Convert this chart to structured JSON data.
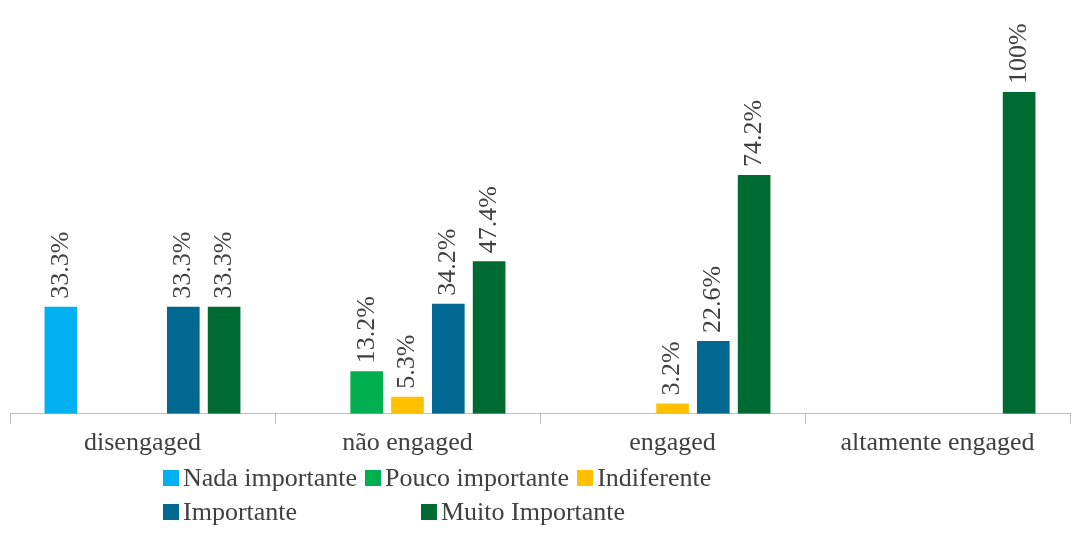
{
  "chart_data": {
    "type": "bar",
    "categories": [
      "disengaged",
      "não engaged",
      "engaged",
      "altamente engaged"
    ],
    "legend": "bottom",
    "series": [
      {
        "name": "Nada importante",
        "color": "#00b0f0",
        "values": [
          33.3,
          null,
          null,
          null
        ],
        "value_labels": [
          "33.3%",
          null,
          null,
          null
        ]
      },
      {
        "name": "Pouco importante",
        "color": "#00b050",
        "values": [
          null,
          13.2,
          null,
          null
        ],
        "value_labels": [
          null,
          "13.2%",
          null,
          null
        ]
      },
      {
        "name": "Indiferente",
        "color": "#ffc000",
        "values": [
          null,
          5.3,
          3.2,
          null
        ],
        "value_labels": [
          null,
          "5.3%",
          "3.2%",
          null
        ]
      },
      {
        "name": "Importante",
        "color": "#006891",
        "values": [
          33.3,
          34.2,
          22.6,
          null
        ],
        "value_labels": [
          "33.3%",
          "34.2%",
          "22.6%",
          null
        ]
      },
      {
        "name": "Muito Importante",
        "color": "#006b31",
        "values": [
          33.3,
          47.4,
          74.2,
          100
        ],
        "value_labels": [
          "33.3%",
          "47.4%",
          "74.2%",
          "100%"
        ]
      }
    ]
  }
}
